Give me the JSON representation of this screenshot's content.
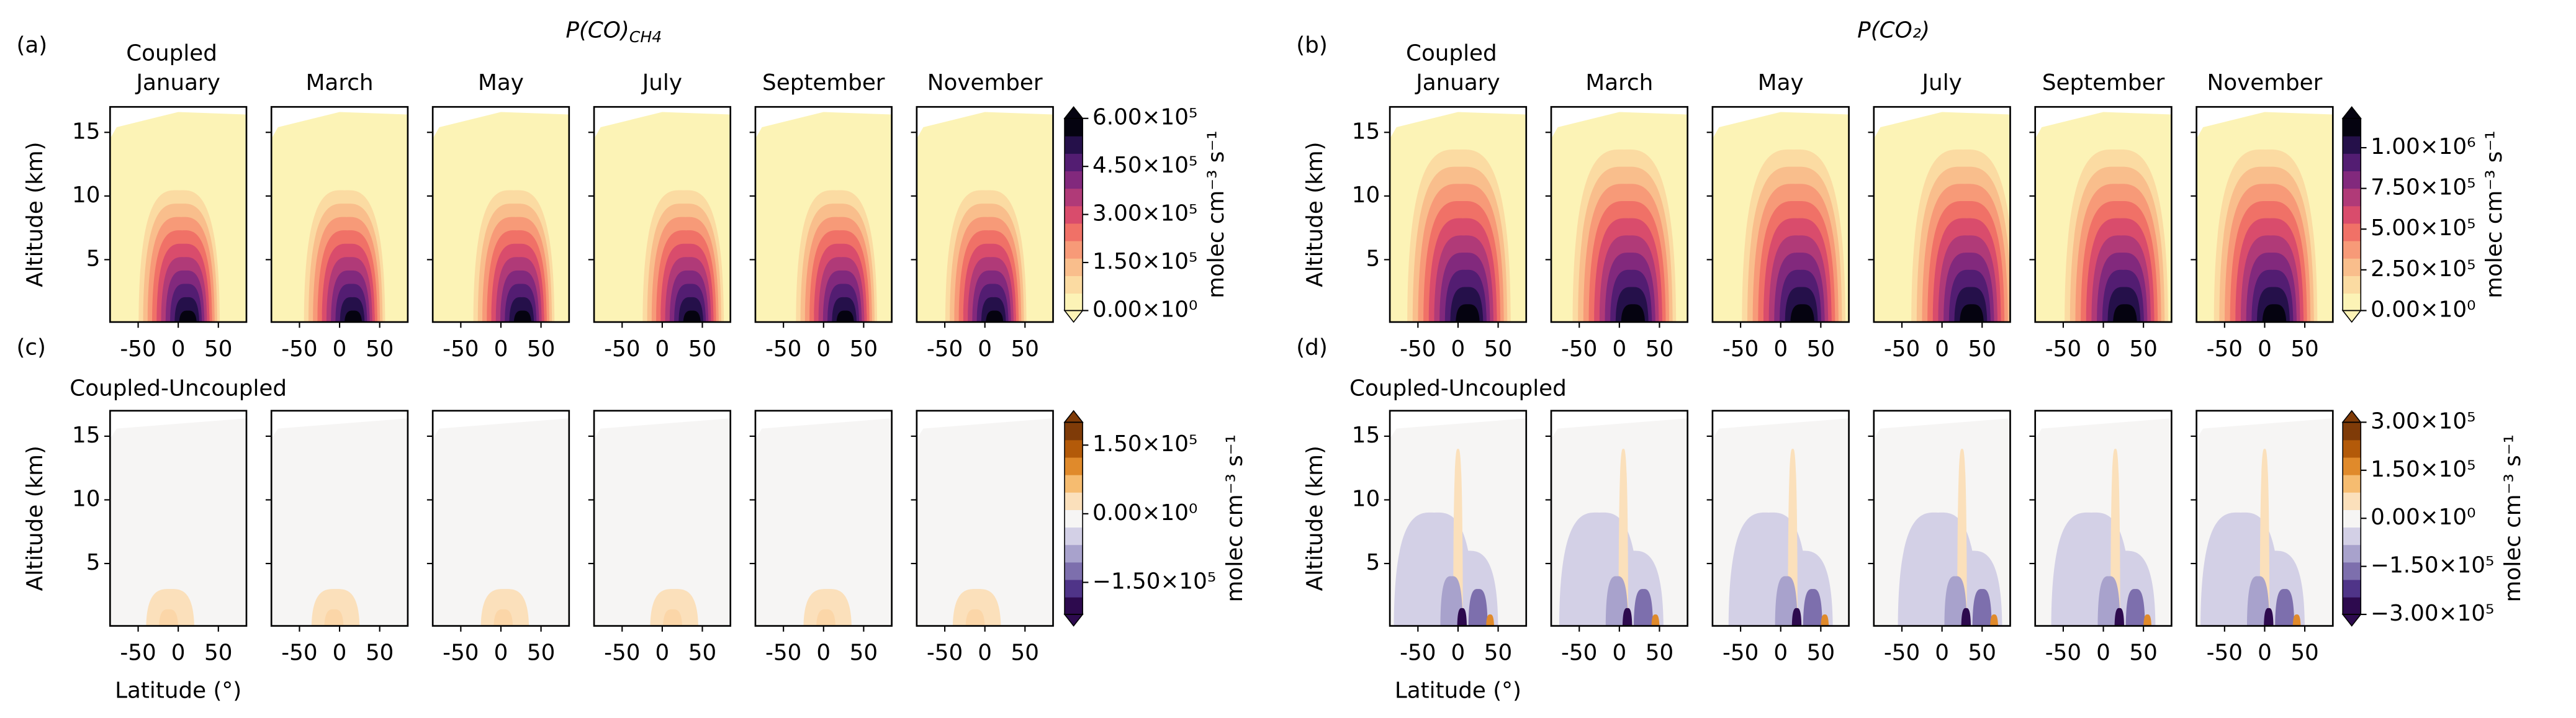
{
  "chart_data": [
    {
      "type": "contour",
      "label": "(a)",
      "title": "P(CO)",
      "title_subscript": "CH4",
      "subtitle": "Coupled",
      "panels": [
        "January",
        "March",
        "May",
        "July",
        "September",
        "November"
      ],
      "ylabel": "Altitude (km)",
      "xlim": [
        -85,
        85
      ],
      "xticks": [
        -50,
        0,
        50
      ],
      "ylim": [
        0.1,
        17
      ],
      "yticks": [
        5,
        10,
        15
      ],
      "colorbar": {
        "label": "molec cm⁻³ s⁻¹",
        "colormap": "inferno_r",
        "lim": [
          0,
          600000
        ],
        "ticks": [
          {
            "value": 0,
            "label": "0.00×10⁰"
          },
          {
            "value": 150000,
            "label": "1.50×10⁵"
          },
          {
            "value": 300000,
            "label": "3.00×10⁵"
          },
          {
            "value": 450000,
            "label": "4.50×10⁵"
          },
          {
            "value": 600000,
            "label": "6.00×10⁵"
          }
        ]
      }
    },
    {
      "type": "contour",
      "label": "(b)",
      "title": "P(CO₂)",
      "subtitle": "Coupled",
      "panels": [
        "January",
        "March",
        "May",
        "July",
        "September",
        "November"
      ],
      "ylabel": "Altitude (km)",
      "xlim": [
        -85,
        85
      ],
      "xticks": [
        -50,
        0,
        50
      ],
      "ylim": [
        0.1,
        17
      ],
      "yticks": [
        5,
        10,
        15
      ],
      "colorbar": {
        "label": "molec cm⁻³ s⁻¹",
        "colormap": "inferno_r",
        "lim": [
          0,
          1180000
        ],
        "ticks": [
          {
            "value": 0,
            "label": "0.00×10⁰"
          },
          {
            "value": 250000,
            "label": "2.50×10⁵"
          },
          {
            "value": 500000,
            "label": "5.00×10⁵"
          },
          {
            "value": 750000,
            "label": "7.50×10⁵"
          },
          {
            "value": 1000000,
            "label": "1.00×10⁶"
          }
        ]
      }
    },
    {
      "type": "contour",
      "label": "(c)",
      "subtitle": "Coupled-Uncoupled",
      "ylabel": "Altitude (km)",
      "xlabel": "Latitude (°)",
      "xlim": [
        -85,
        85
      ],
      "xticks": [
        -50,
        0,
        50
      ],
      "ylim": [
        0.1,
        17
      ],
      "yticks": [
        5,
        10,
        15
      ],
      "colorbar": {
        "label": "molec cm⁻³ s⁻¹",
        "colormap": "PuOr_r",
        "lim": [
          -220000,
          200000
        ],
        "ticks": [
          {
            "value": -150000,
            "label": "−1.50×10⁵"
          },
          {
            "value": 0,
            "label": "0.00×10⁰"
          },
          {
            "value": 150000,
            "label": "1.50×10⁵"
          }
        ]
      }
    },
    {
      "type": "contour",
      "label": "(d)",
      "subtitle": "Coupled-Uncoupled",
      "ylabel": "Altitude (km)",
      "xlabel": "Latitude (°)",
      "xlim": [
        -85,
        85
      ],
      "xticks": [
        -50,
        0,
        50
      ],
      "ylim": [
        0.1,
        17
      ],
      "yticks": [
        5,
        10,
        15
      ],
      "colorbar": {
        "label": "molec cm⁻³ s⁻¹",
        "colormap": "PuOr_r",
        "lim": [
          -300000,
          300000
        ],
        "ticks": [
          {
            "value": -300000,
            "label": "−3.00×10⁵"
          },
          {
            "value": -150000,
            "label": "−1.50×10⁵"
          },
          {
            "value": 0,
            "label": "0.00×10⁰"
          },
          {
            "value": 150000,
            "label": "1.50×10⁵"
          },
          {
            "value": 300000,
            "label": "3.00×10⁵"
          }
        ]
      }
    }
  ]
}
